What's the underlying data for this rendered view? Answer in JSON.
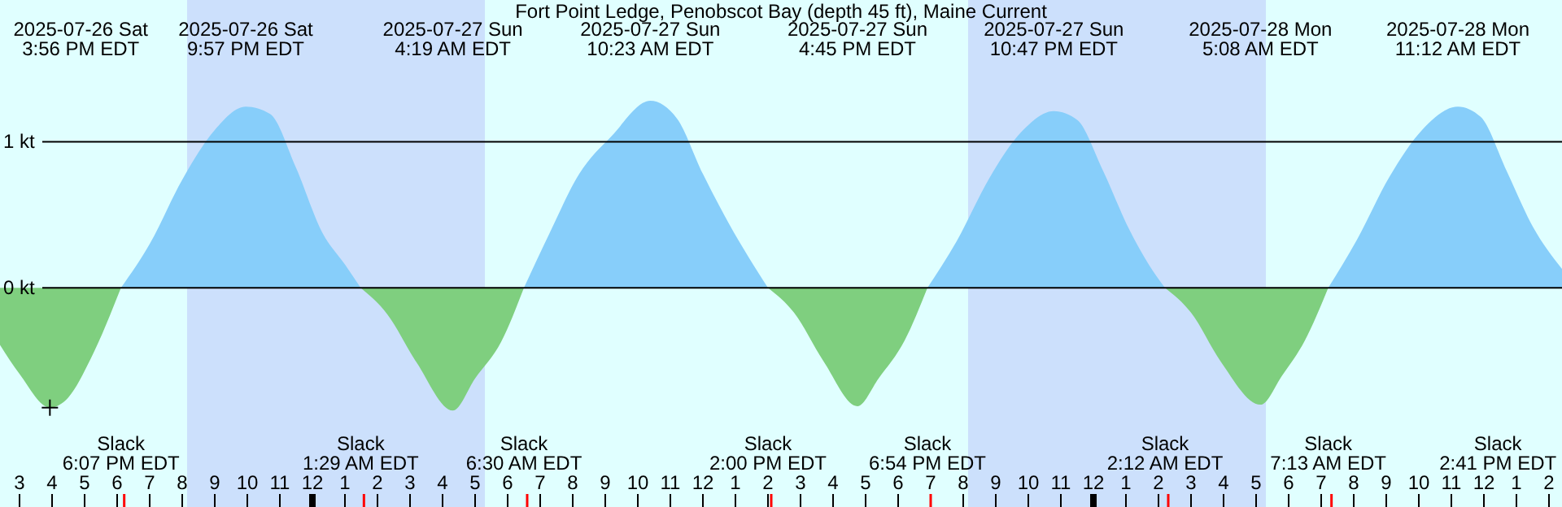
{
  "chart_data": {
    "type": "area",
    "title": "Fort Point Ledge, Penobscot Bay (depth 45 ft), Maine Current",
    "xlim": [
      "2025-07-26T14:24",
      "2025-07-28T14:24"
    ],
    "ylim": [
      -1.5,
      1.97
    ],
    "yticks": [
      {
        "value": 0,
        "label": "0 kt"
      },
      {
        "value": 1,
        "label": "1 kt"
      }
    ],
    "xticks": [
      {
        "value": "2025-07-26T15:00",
        "label": "3"
      },
      {
        "value": "2025-07-26T16:00",
        "label": "4"
      },
      {
        "value": "2025-07-26T17:00",
        "label": "5"
      },
      {
        "value": "2025-07-26T18:00",
        "label": "6"
      },
      {
        "value": "2025-07-26T19:00",
        "label": "7"
      },
      {
        "value": "2025-07-26T20:00",
        "label": "8"
      },
      {
        "value": "2025-07-26T21:00",
        "label": "9"
      },
      {
        "value": "2025-07-26T22:00",
        "label": "10"
      },
      {
        "value": "2025-07-26T23:00",
        "label": "11"
      },
      {
        "value": "2025-07-27T00:00",
        "label": "12"
      },
      {
        "value": "2025-07-27T01:00",
        "label": "1"
      },
      {
        "value": "2025-07-27T02:00",
        "label": "2"
      },
      {
        "value": "2025-07-27T03:00",
        "label": "3"
      },
      {
        "value": "2025-07-27T04:00",
        "label": "4"
      },
      {
        "value": "2025-07-27T05:00",
        "label": "5"
      },
      {
        "value": "2025-07-27T06:00",
        "label": "6"
      },
      {
        "value": "2025-07-27T07:00",
        "label": "7"
      },
      {
        "value": "2025-07-27T08:00",
        "label": "8"
      },
      {
        "value": "2025-07-27T09:00",
        "label": "9"
      },
      {
        "value": "2025-07-27T10:00",
        "label": "10"
      },
      {
        "value": "2025-07-27T11:00",
        "label": "11"
      },
      {
        "value": "2025-07-27T12:00",
        "label": "12"
      },
      {
        "value": "2025-07-27T13:00",
        "label": "1"
      },
      {
        "value": "2025-07-27T14:00",
        "label": "2"
      },
      {
        "value": "2025-07-27T15:00",
        "label": "3"
      },
      {
        "value": "2025-07-27T16:00",
        "label": "4"
      },
      {
        "value": "2025-07-27T17:00",
        "label": "5"
      },
      {
        "value": "2025-07-27T18:00",
        "label": "6"
      },
      {
        "value": "2025-07-27T19:00",
        "label": "7"
      },
      {
        "value": "2025-07-27T20:00",
        "label": "8"
      },
      {
        "value": "2025-07-27T21:00",
        "label": "9"
      },
      {
        "value": "2025-07-27T22:00",
        "label": "10"
      },
      {
        "value": "2025-07-27T23:00",
        "label": "11"
      },
      {
        "value": "2025-07-28T00:00",
        "label": "12"
      },
      {
        "value": "2025-07-28T01:00",
        "label": "1"
      },
      {
        "value": "2025-07-28T02:00",
        "label": "2"
      },
      {
        "value": "2025-07-28T03:00",
        "label": "3"
      },
      {
        "value": "2025-07-28T04:00",
        "label": "4"
      },
      {
        "value": "2025-07-28T05:00",
        "label": "5"
      },
      {
        "value": "2025-07-28T06:00",
        "label": "6"
      },
      {
        "value": "2025-07-28T07:00",
        "label": "7"
      },
      {
        "value": "2025-07-28T08:00",
        "label": "8"
      },
      {
        "value": "2025-07-28T09:00",
        "label": "9"
      },
      {
        "value": "2025-07-28T10:00",
        "label": "10"
      },
      {
        "value": "2025-07-28T11:00",
        "label": "11"
      },
      {
        "value": "2025-07-28T12:00",
        "label": "12"
      },
      {
        "value": "2025-07-28T13:00",
        "label": "1"
      },
      {
        "value": "2025-07-28T14:00",
        "label": "2"
      }
    ],
    "grid": "y",
    "bands": [
      {
        "axis": "x",
        "from": "2025-07-26T20:09",
        "to": "2025-07-27T05:18",
        "color": "#cce0fc"
      },
      {
        "axis": "x",
        "from": "2025-07-27T20:09",
        "to": "2025-07-28T05:18",
        "color": "#cce0fc"
      }
    ],
    "series": [
      {
        "color": "#87cefa",
        "x": [
          "2025-07-26T18:07",
          "2025-07-26T19:00",
          "2025-07-26T20:00",
          "2025-07-26T21:00",
          "2025-07-26T21:57",
          "2025-07-26T22:42",
          "2025-07-26T23:30",
          "2025-07-27T00:18",
          "2025-07-27T01:00",
          "2025-07-27T01:29",
          "2025-07-27T02:18",
          "2025-07-27T06:30",
          "2025-07-27T07:18",
          "2025-07-27T08:12",
          "2025-07-27T09:12",
          "2025-07-27T10:23",
          "2025-07-27T11:12",
          "2025-07-27T12:00",
          "2025-07-27T12:48",
          "2025-07-27T14:00",
          "2025-07-27T14:48",
          "2025-07-27T18:54",
          "2025-07-27T19:48",
          "2025-07-27T20:48",
          "2025-07-27T21:48",
          "2025-07-27T22:47",
          "2025-07-27T23:30",
          "2025-07-28T00:18",
          "2025-07-28T01:06",
          "2025-07-28T01:42",
          "2025-07-28T02:12",
          "2025-07-28T03:00",
          "2025-07-28T07:13",
          "2025-07-28T08:06",
          "2025-07-28T09:06",
          "2025-07-28T10:06",
          "2025-07-28T11:12",
          "2025-07-28T11:54",
          "2025-07-28T12:42",
          "2025-07-28T13:30",
          "2025-07-28T14:24"
        ],
        "values": [
          0,
          0.3,
          0.74,
          1.08,
          1.24,
          1.19,
          0.82,
          0.38,
          0.16,
          0,
          null,
          0,
          0.38,
          0.78,
          1.04,
          1.28,
          1.16,
          0.78,
          0.44,
          0,
          null,
          0,
          0.32,
          0.75,
          1.07,
          1.21,
          1.15,
          0.8,
          0.4,
          0.16,
          0,
          null,
          0,
          0.33,
          0.76,
          1.08,
          1.24,
          1.17,
          0.8,
          0.42,
          0.13
        ]
      },
      {
        "color": "#7fcf7f",
        "x": [
          "2025-07-26T14:24",
          "2025-07-26T15:00",
          "2025-07-26T15:56",
          "2025-07-26T16:30",
          "2025-07-26T17:12",
          "2025-07-26T18:07",
          "2025-07-26T19:00",
          "2025-07-27T01:29",
          "2025-07-27T02:18",
          "2025-07-27T03:12",
          "2025-07-27T04:19",
          "2025-07-27T05:00",
          "2025-07-27T05:48",
          "2025-07-27T06:30",
          "2025-07-27T07:18",
          "2025-07-27T14:00",
          "2025-07-27T14:48",
          "2025-07-27T15:42",
          "2025-07-27T16:45",
          "2025-07-27T17:24",
          "2025-07-27T18:12",
          "2025-07-27T18:54",
          "2025-07-27T19:48",
          "2025-07-28T02:12",
          "2025-07-28T03:00",
          "2025-07-28T03:54",
          "2025-07-28T05:08",
          "2025-07-28T05:48",
          "2025-07-28T06:30",
          "2025-07-28T07:13"
        ],
        "values": [
          -0.39,
          -0.59,
          -0.82,
          -0.75,
          -0.48,
          0,
          null,
          0,
          -0.18,
          -0.51,
          -0.84,
          -0.62,
          -0.37,
          0,
          null,
          0,
          -0.17,
          -0.5,
          -0.81,
          -0.62,
          -0.36,
          0,
          null,
          0,
          -0.17,
          -0.5,
          -0.8,
          -0.6,
          -0.36,
          0
        ]
      }
    ],
    "annotations": [
      "2025-07-26 Sat\n3:56 PM EDT",
      "2025-07-26 Sat\n9:57 PM EDT",
      "2025-07-27 Sun\n4:19 AM EDT",
      "2025-07-27 Sun\n10:23 AM EDT",
      "2025-07-27 Sun\n4:45 PM EDT",
      "2025-07-27 Sun\n10:47 PM EDT",
      "2025-07-28 Mon\n5:08 AM EDT",
      "2025-07-28 Mon\n11:12 AM EDT",
      "Slack\n6:07 PM EDT",
      "Slack\n1:29 AM EDT",
      "Slack\n6:30 AM EDT",
      "Slack\n2:00 PM EDT",
      "Slack\n6:54 PM EDT",
      "Slack\n2:12 AM EDT",
      "Slack\n7:13 AM EDT",
      "Slack\n2:41 PM EDT"
    ]
  }
}
